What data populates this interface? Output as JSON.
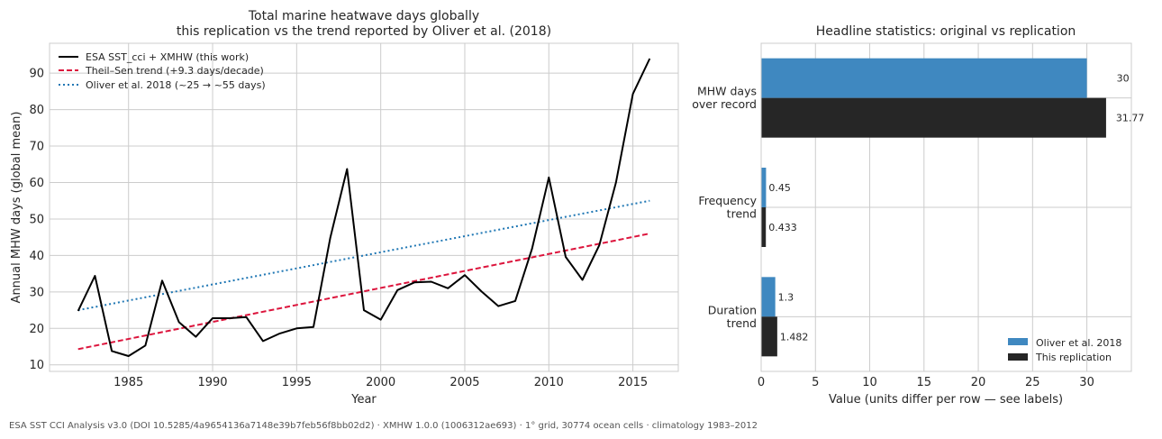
{
  "footer": "ESA SST CCI Analysis v3.0 (DOI 10.5285/4a9654136a7148e39b7feb56f8bb02d2) · XMHW 1.0.0 (1006312ae693) · 1° grid, 30774 ocean cells · climatology 1983–2012",
  "colors": {
    "observed": "#000000",
    "trend": "#dc143c",
    "oliver": "#1f77b4",
    "bar_original": "#3f88c0",
    "bar_replication": "#262626"
  },
  "chart_data": [
    {
      "type": "line",
      "title_line1": "Total marine heatwave days globally",
      "title_line2": "this replication vs the trend reported by Oliver et al. (2018)",
      "xlabel": "Year",
      "ylabel": "Annual MHW days (global mean)",
      "xlim": [
        1980.3,
        2017.7
      ],
      "ylim": [
        8.2,
        98.2
      ],
      "xticks": [
        1985,
        1990,
        1995,
        2000,
        2005,
        2010,
        2015
      ],
      "yticks": [
        10,
        20,
        30,
        40,
        50,
        60,
        70,
        80,
        90
      ],
      "grid": true,
      "legend_position": "top-left",
      "series": [
        {
          "name": "ESA SST_cci + XMHW (this work)",
          "style": "solid",
          "x": [
            1982,
            1983,
            1984,
            1985,
            1986,
            1987,
            1988,
            1989,
            1990,
            1991,
            1992,
            1993,
            1994,
            1995,
            1996,
            1997,
            1998,
            1999,
            2000,
            2001,
            2002,
            2003,
            2004,
            2005,
            2006,
            2007,
            2008,
            2009,
            2010,
            2011,
            2012,
            2013,
            2014,
            2015,
            2016
          ],
          "y": [
            24.8,
            34.4,
            13.8,
            12.4,
            15.3,
            33.1,
            21.7,
            17.7,
            22.8,
            22.8,
            23.1,
            16.5,
            18.6,
            20.0,
            20.4,
            44.9,
            63.7,
            25.0,
            22.4,
            30.5,
            32.6,
            32.8,
            31.0,
            34.6,
            30.1,
            26.1,
            27.5,
            41.8,
            61.4,
            39.6,
            33.3,
            42.8,
            60.1,
            84.3,
            94.0
          ]
        },
        {
          "name": "Theil–Sen trend (+9.3 days/decade)",
          "style": "dashed",
          "x": [
            1982,
            2016
          ],
          "y": [
            14.3,
            46.0
          ]
        },
        {
          "name": "Oliver et al. 2018 (~25 → ~55 days)",
          "style": "dotted",
          "x": [
            1982,
            2016
          ],
          "y": [
            25.0,
            55.0
          ]
        }
      ]
    },
    {
      "type": "bar",
      "orientation": "horizontal",
      "title": "Headline statistics: original vs replication",
      "xlabel": "Value (units differ per row — see labels)",
      "xlim": [
        0,
        34.1
      ],
      "xticks": [
        0,
        5,
        10,
        15,
        20,
        25,
        30
      ],
      "grid": true,
      "legend_position": "bottom-right",
      "categories": [
        [
          "MHW days",
          "over record"
        ],
        [
          "Frequency",
          "trend"
        ],
        [
          "Duration",
          "trend"
        ]
      ],
      "series": [
        {
          "name": "Oliver et al. 2018",
          "values": [
            30,
            0.45,
            1.3
          ],
          "labels": [
            "30",
            "0.45",
            "1.3"
          ]
        },
        {
          "name": "This replication",
          "values": [
            31.77,
            0.433,
            1.482
          ],
          "labels": [
            "31.77",
            "0.433",
            "1.482"
          ]
        }
      ]
    }
  ]
}
